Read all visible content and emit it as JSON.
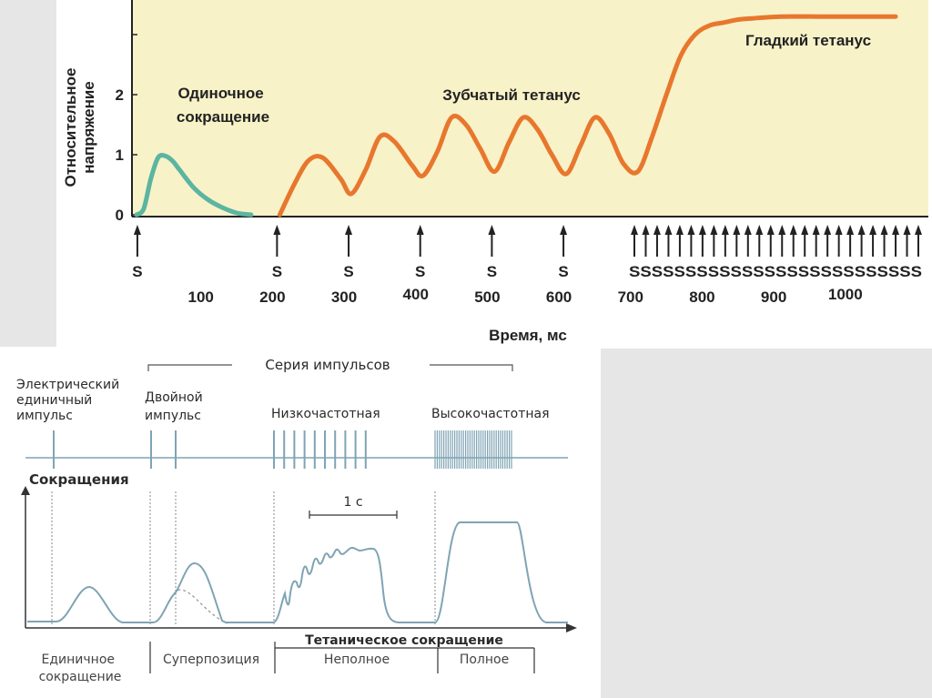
{
  "chart_data": [
    {
      "type": "line",
      "ylabel": "Относительное напряжение",
      "xlabel": "Время, мс",
      "yticks": [
        "0",
        "1",
        "2"
      ],
      "xticks": [
        {
          "value": 100,
          "label": "100"
        },
        {
          "value": 200,
          "label": "200"
        },
        {
          "value": 300,
          "label": "300"
        },
        {
          "value": 400,
          "label": "400"
        },
        {
          "value": 500,
          "label": "500"
        },
        {
          "value": 600,
          "label": "600"
        },
        {
          "value": 700,
          "label": "700"
        },
        {
          "value": 800,
          "label": "800"
        },
        {
          "value": 900,
          "label": "900"
        },
        {
          "value": 1000,
          "label": "1000"
        }
      ],
      "xlim": [
        0,
        1100
      ],
      "ylim": [
        0,
        3.2
      ],
      "colors": {
        "background": "#f8f2c8",
        "single": "#5bb5a0",
        "tetanus": "#e8772e"
      },
      "annotations": {
        "single": "Одиночное сокращение",
        "jagged": "Зубчатый тетанус",
        "smooth": "Гладкий тетанус"
      },
      "stimulus_label": "S",
      "stimuli_single": [
        5,
        200,
        300,
        400,
        500,
        600
      ],
      "stimuli_train_label": "SSSSSSSSSSSSSSSSSSSSSSSSSS",
      "series": [
        {
          "x": [
            0,
            10,
            20,
            30,
            40,
            50,
            60,
            80,
            100,
            120,
            140,
            160
          ],
          "y": [
            0,
            0.1,
            0.6,
            0.95,
            0.98,
            0.9,
            0.75,
            0.45,
            0.25,
            0.12,
            0.03,
            0
          ]
        },
        {
          "x": [
            200,
            220,
            240,
            260,
            285,
            300,
            320,
            340,
            360,
            385,
            400,
            420,
            440,
            460,
            480,
            500,
            520,
            540,
            560,
            580,
            600,
            620,
            640,
            660,
            680,
            700,
            720,
            740,
            760,
            780,
            800,
            820,
            840,
            860,
            900,
            950,
            1000,
            1060
          ],
          "y": [
            0,
            0.5,
            0.9,
            0.95,
            0.6,
            0.35,
            0.75,
            1.3,
            1.22,
            0.82,
            0.65,
            1.05,
            1.62,
            1.5,
            1.1,
            0.72,
            1.2,
            1.62,
            1.42,
            1.0,
            0.68,
            1.15,
            1.62,
            1.35,
            0.85,
            0.72,
            1.3,
            2.0,
            2.65,
            3.0,
            3.15,
            3.2,
            3.25,
            3.27,
            3.3,
            3.3,
            3.3,
            3.3
          ]
        }
      ]
    },
    {
      "type": "line",
      "title": "Серия импульсов",
      "stim_labels": {
        "single": "Электрический единичный импульс",
        "double": "Двойной импульс",
        "low": "Низкочастотная",
        "high": "Высокочастотная"
      },
      "y_label": "Сокращения",
      "interval_label": "1 с",
      "bottom_title": "Тетаническое сокращение",
      "bottom_labels": [
        "Единичное сокращение",
        "Суперпозиция",
        "Неполное",
        "Полное"
      ],
      "colors": {
        "line": "#7fa4b4",
        "text": "#2a2a2a"
      }
    }
  ]
}
